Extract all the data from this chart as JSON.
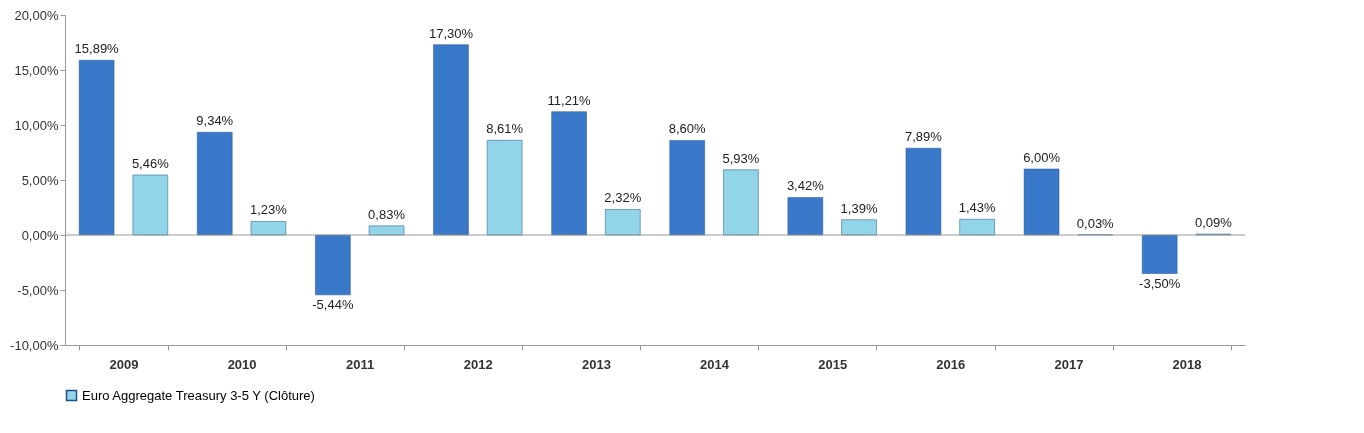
{
  "chart_data": {
    "type": "bar",
    "categories": [
      "2009",
      "2010",
      "2011",
      "2012",
      "2013",
      "2014",
      "2015",
      "2016",
      "2017",
      "2018"
    ],
    "series": [
      {
        "color": "#3a78c9",
        "values": [
          15.89,
          9.34,
          -5.44,
          17.3,
          11.21,
          8.6,
          3.42,
          7.89,
          6.0,
          -3.5
        ],
        "value_labels": [
          "15,89%",
          "9,34%",
          "-5,44%",
          "17,30%",
          "11,21%",
          "8,60%",
          "3,42%",
          "7,89%",
          "6,00%",
          "-3,50%"
        ]
      },
      {
        "name": "Euro Aggregate Treasury 3-5 Y (Clôture)",
        "color": "#92d5e8",
        "values": [
          5.46,
          1.23,
          0.83,
          8.61,
          2.32,
          5.93,
          1.39,
          1.43,
          0.03,
          0.09
        ],
        "value_labels": [
          "5,46%",
          "1,23%",
          "0,83%",
          "8,61%",
          "2,32%",
          "5,93%",
          "1,39%",
          "1,43%",
          "0,03%",
          "0,09%"
        ]
      }
    ],
    "ylim": [
      -10,
      20
    ],
    "yticks": [
      {
        "value": -10,
        "label": "-10,00%"
      },
      {
        "value": -5,
        "label": "-5,00%"
      },
      {
        "value": 0,
        "label": "0,00%"
      },
      {
        "value": 5,
        "label": "5,00%"
      },
      {
        "value": 10,
        "label": "10,00%"
      },
      {
        "value": 15,
        "label": "15,00%"
      },
      {
        "value": 20,
        "label": "20,00%"
      }
    ],
    "legend": "bottom"
  }
}
